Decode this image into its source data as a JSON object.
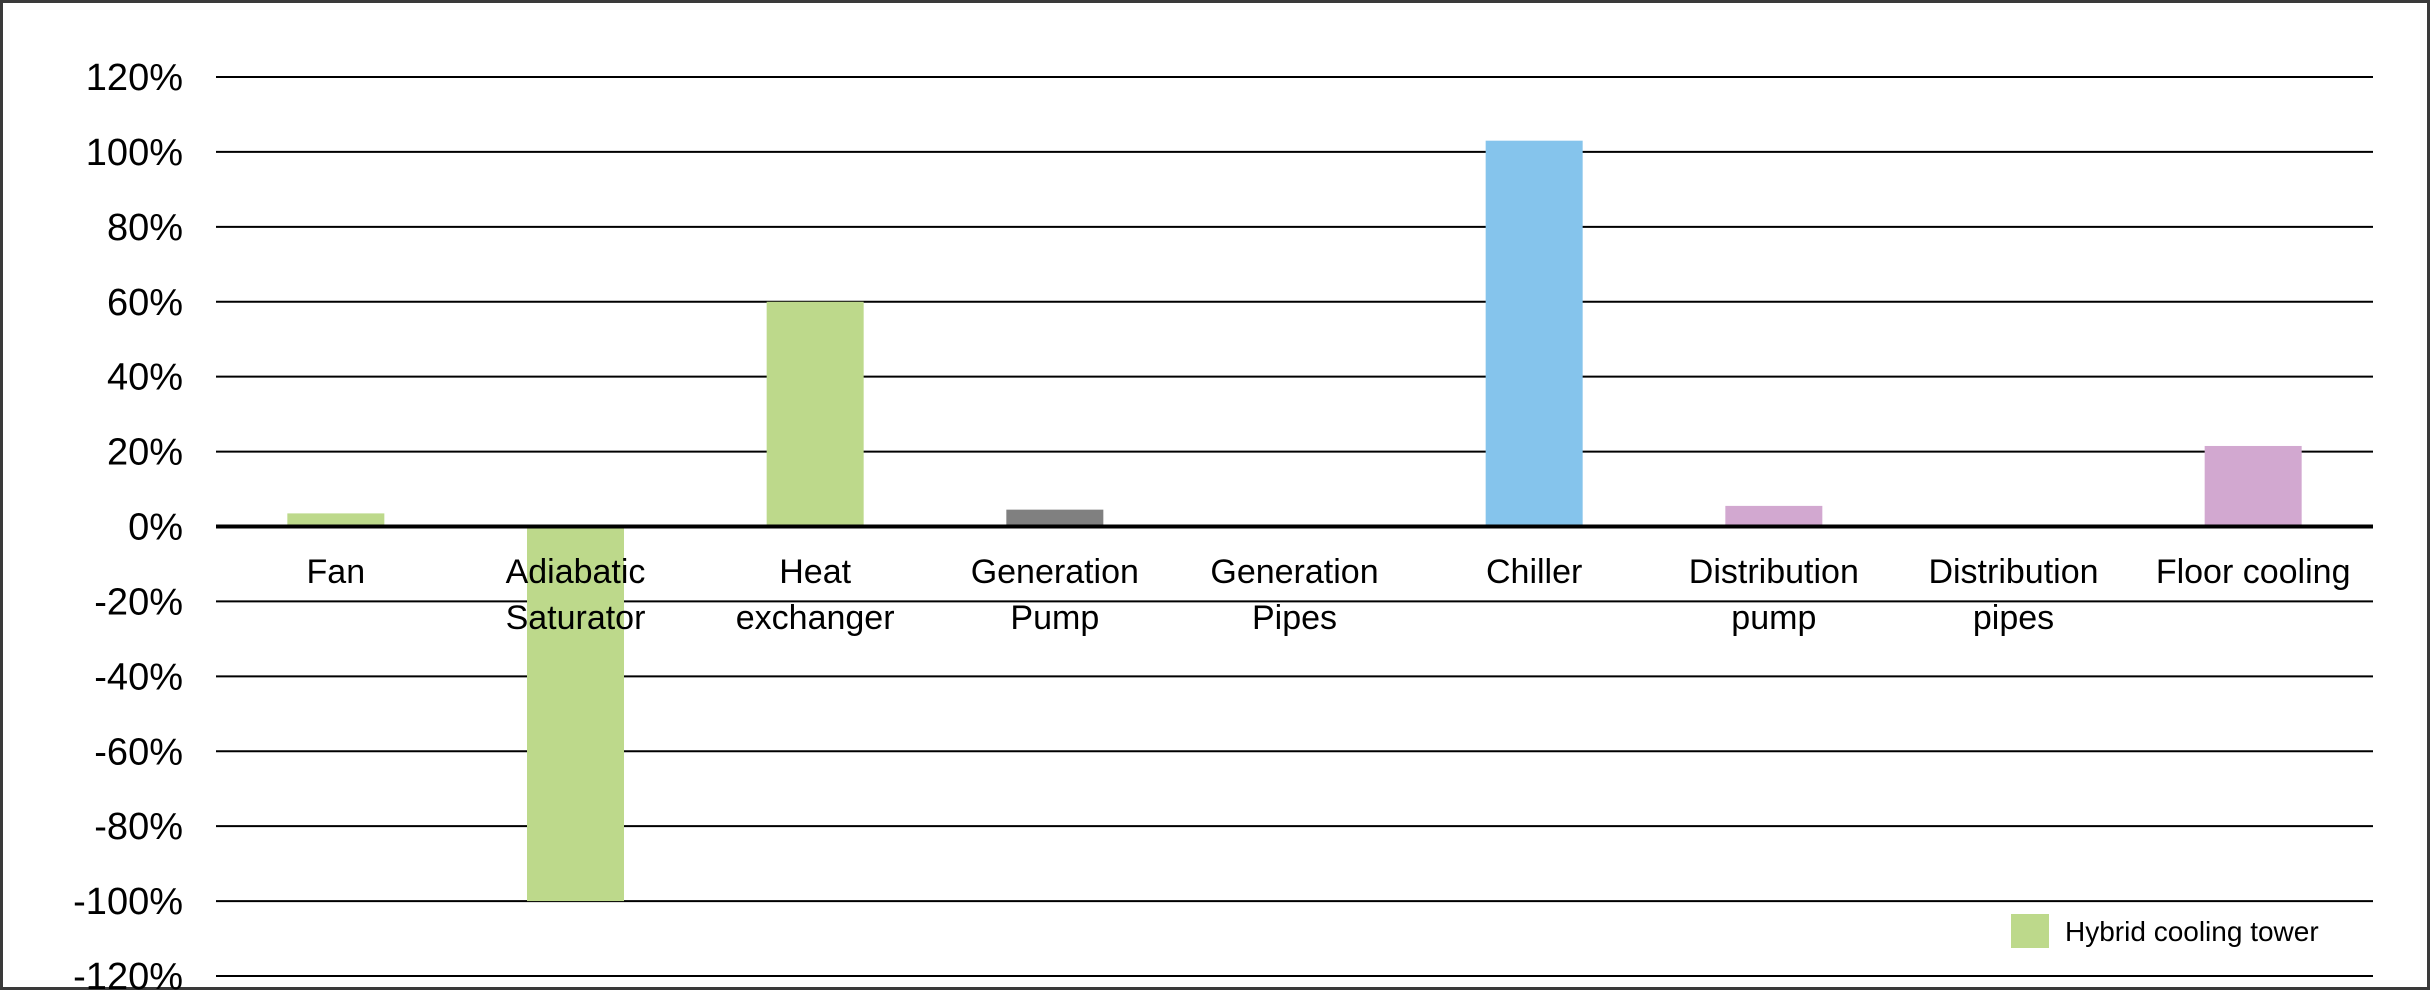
{
  "chart_data": {
    "type": "bar",
    "title": "",
    "xlabel": "",
    "ylabel": "",
    "ylim": [
      -120,
      120
    ],
    "y_ticks": [
      "120%",
      "100%",
      "80%",
      "60%",
      "40%",
      "20%",
      "0%",
      "-20%",
      "-40%",
      "-60%",
      "-80%",
      "-100%",
      "-120%"
    ],
    "y_tick_values": [
      120,
      100,
      80,
      60,
      40,
      20,
      0,
      -20,
      -40,
      -60,
      -80,
      -100,
      -120
    ],
    "grid": true,
    "categories": [
      [
        "Fan"
      ],
      [
        "Adiabatic",
        "Saturator"
      ],
      [
        "Heat",
        "exchanger"
      ],
      [
        "Generation",
        "Pump"
      ],
      [
        "Generation",
        "Pipes"
      ],
      [
        "Chiller"
      ],
      [
        "Distribution",
        "pump"
      ],
      [
        "Distribution",
        "pipes"
      ],
      [
        "Floor cooling"
      ]
    ],
    "values": [
      3.5,
      -100,
      60,
      4.5,
      0,
      103,
      5.5,
      0,
      21.5
    ],
    "bar_colors": [
      "#bdd98b",
      "#bdd98b",
      "#bdd98b",
      "#808080",
      "#808080",
      "#85c4ec",
      "#d2a8d0",
      "#d2a8d0",
      "#d2a8d0"
    ],
    "legend": {
      "position": "bottom-right",
      "entries": [
        {
          "name": "Hybrid cooling tower",
          "color": "#bdd98b"
        }
      ]
    }
  }
}
